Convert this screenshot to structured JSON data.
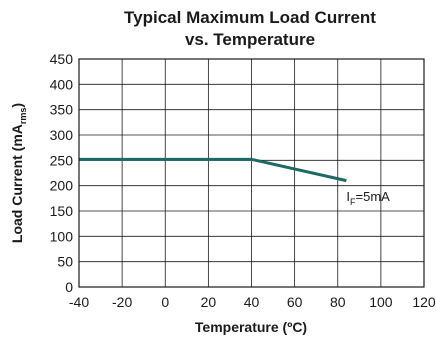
{
  "chart_data": {
    "type": "line",
    "title": "Typical Maximum Load Current",
    "subtitle": "vs. Temperature",
    "xlabel": "Temperature (ºC)",
    "ylabel": {
      "main": "Load Current (mA",
      "sub": "rms",
      "end": ")"
    },
    "xlim": [
      -40,
      120
    ],
    "ylim": [
      0,
      450
    ],
    "xticks": [
      -40,
      -20,
      0,
      20,
      40,
      60,
      80,
      100,
      120
    ],
    "yticks": [
      0,
      50,
      100,
      150,
      200,
      250,
      300,
      350,
      400,
      450
    ],
    "grid": true,
    "series": [
      {
        "name": "",
        "color": "#1d6a63",
        "x": [
          -40,
          40,
          84
        ],
        "y": [
          252,
          252,
          210
        ]
      }
    ],
    "annotation": {
      "main": "I",
      "sub": "F",
      "rest": "=5mA",
      "x": 84,
      "y": 180
    }
  }
}
